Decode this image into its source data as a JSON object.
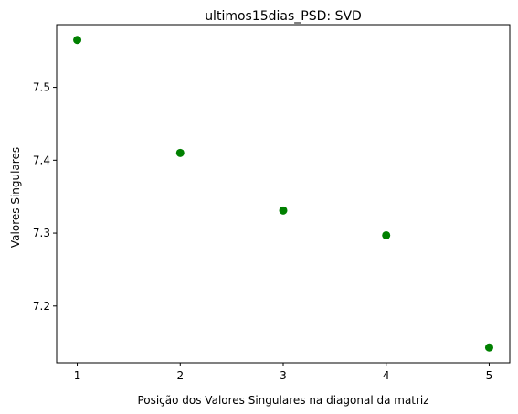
{
  "chart_data": {
    "type": "scatter",
    "title": "ultimos15dias_PSD: SVD",
    "xlabel": "Posição dos Valores Singulares na diagonal da matriz",
    "ylabel": "Valores Singulares",
    "x": [
      1,
      2,
      3,
      4,
      5
    ],
    "y": [
      7.565,
      7.41,
      7.331,
      7.297,
      7.143
    ],
    "xlim": [
      0.8,
      5.2
    ],
    "ylim": [
      7.122,
      7.586
    ],
    "xticks": [
      "1",
      "2",
      "3",
      "4",
      "5"
    ],
    "yticks": [
      "7.2",
      "7.3",
      "7.4",
      "7.5"
    ],
    "ytick_values": [
      7.2,
      7.3,
      7.4,
      7.5
    ],
    "grid": false,
    "marker_color": "#008000"
  }
}
